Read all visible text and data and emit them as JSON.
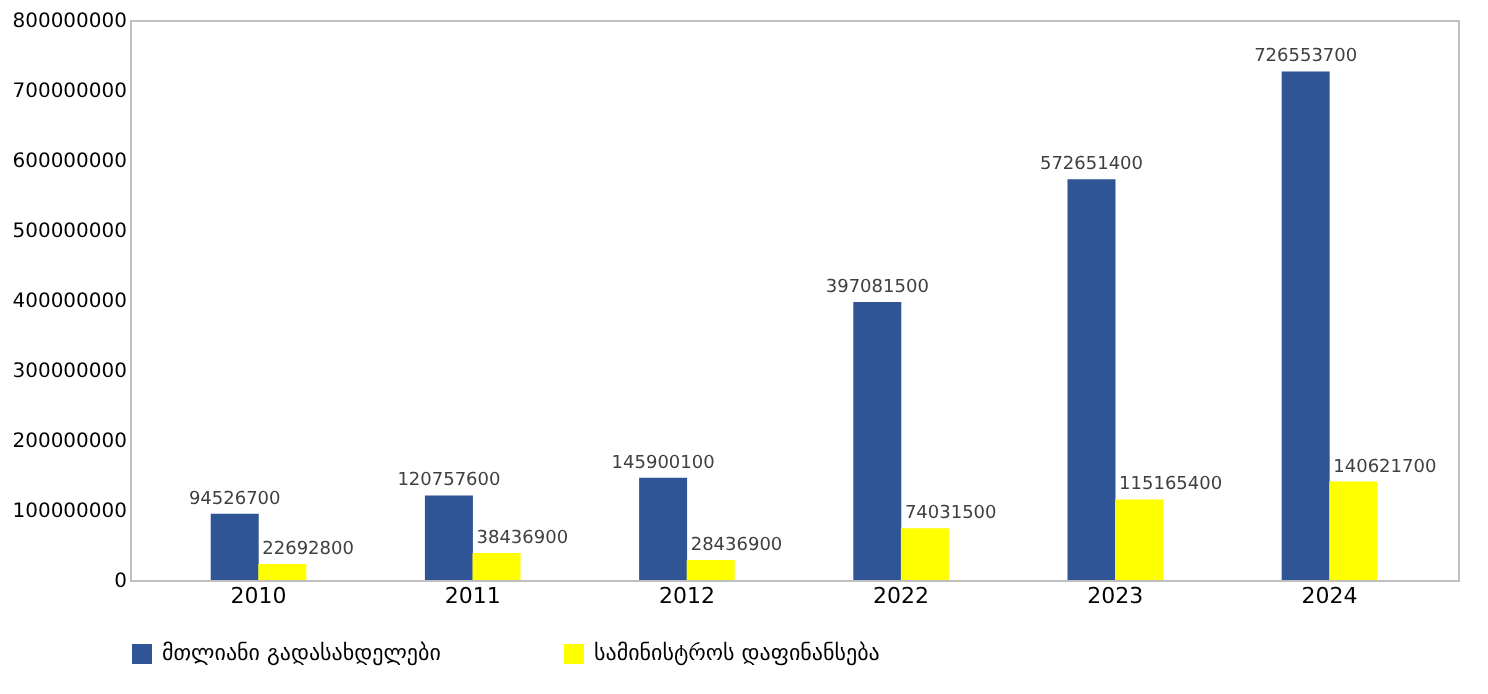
{
  "chart_data": {
    "type": "bar",
    "categories": [
      "2010",
      "2011",
      "2012",
      "2022",
      "2023",
      "2024"
    ],
    "series": [
      {
        "name": "მთლიანი გადასახდელები",
        "color": "#2f5597",
        "values": [
          94526700,
          120757600,
          145900100,
          397081500,
          572651400,
          726553700
        ]
      },
      {
        "name": "სამინისტროს დაფინანსება",
        "color": "#ffff00",
        "values": [
          22692800,
          38436900,
          28436900,
          74031500,
          115165400,
          140621700
        ]
      }
    ],
    "ylim": [
      0,
      800000000
    ],
    "yticks": [
      0,
      100000000,
      200000000,
      300000000,
      400000000,
      500000000,
      600000000,
      700000000,
      800000000
    ],
    "grid": false,
    "legend": "bottom",
    "data_labels": true
  }
}
